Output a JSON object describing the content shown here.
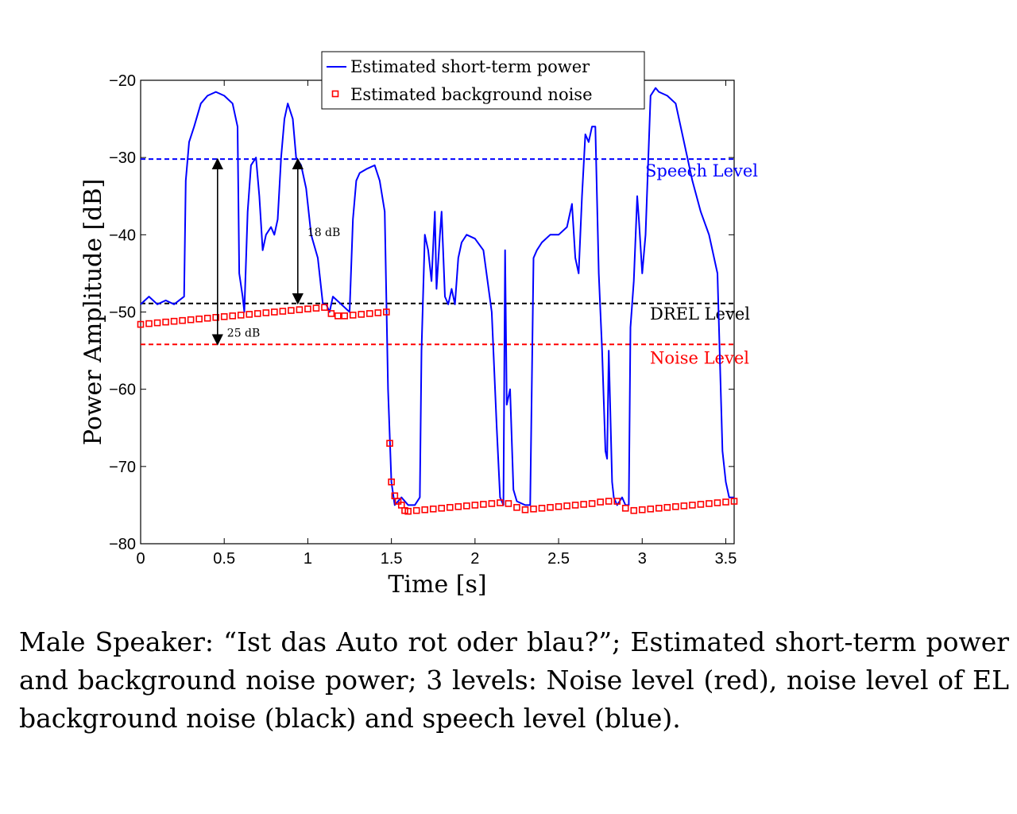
{
  "chart_data": {
    "type": "line",
    "xlabel": "Time [s]",
    "ylabel": "Power Amplitude [dB]",
    "xlim": [
      0,
      3.55
    ],
    "ylim": [
      -80,
      -20
    ],
    "xticks": [
      0,
      0.5,
      1,
      1.5,
      2,
      2.5,
      3,
      3.5
    ],
    "xtick_labels": [
      "0",
      "0.5",
      "1",
      "1.5",
      "2",
      "2.5",
      "3",
      "3.5"
    ],
    "yticks": [
      -20,
      -30,
      -40,
      -50,
      -60,
      -70,
      -80
    ],
    "ytick_labels": [
      "−20",
      "−30",
      "−40",
      "−50",
      "−60",
      "−70",
      "−80"
    ],
    "grid": false,
    "legend_position": "top-center",
    "series": [
      {
        "name": "Estimated short-term power",
        "style": "line",
        "color": "#0000ff",
        "x": [
          0,
          0.05,
          0.1,
          0.15,
          0.2,
          0.26,
          0.27,
          0.29,
          0.32,
          0.36,
          0.4,
          0.45,
          0.5,
          0.55,
          0.58,
          0.59,
          0.61,
          0.62,
          0.64,
          0.66,
          0.69,
          0.71,
          0.73,
          0.75,
          0.78,
          0.8,
          0.82,
          0.84,
          0.86,
          0.88,
          0.91,
          0.93,
          0.96,
          0.99,
          1.02,
          1.06,
          1.09,
          1.11,
          1.13,
          1.15,
          1.2,
          1.25,
          1.27,
          1.29,
          1.31,
          1.35,
          1.4,
          1.43,
          1.46,
          1.48,
          1.5,
          1.52,
          1.56,
          1.6,
          1.64,
          1.67,
          1.68,
          1.7,
          1.72,
          1.74,
          1.76,
          1.77,
          1.79,
          1.8,
          1.82,
          1.84,
          1.86,
          1.88,
          1.9,
          1.92,
          1.95,
          2.0,
          2.05,
          2.1,
          2.13,
          2.15,
          2.17,
          2.18,
          2.19,
          2.21,
          2.23,
          2.25,
          2.3,
          2.33,
          2.35,
          2.37,
          2.4,
          2.45,
          2.5,
          2.55,
          2.58,
          2.6,
          2.62,
          2.64,
          2.66,
          2.68,
          2.7,
          2.72,
          2.74,
          2.76,
          2.78,
          2.79,
          2.8,
          2.82,
          2.83,
          2.85,
          2.88,
          2.9,
          2.92,
          2.93,
          2.95,
          2.97,
          2.98,
          3.0,
          3.02,
          3.05,
          3.08,
          3.1,
          3.15,
          3.2,
          3.25,
          3.3,
          3.35,
          3.4,
          3.45,
          3.48,
          3.5,
          3.52,
          3.55
        ],
        "y": [
          -49,
          -48,
          -49,
          -48.5,
          -49,
          -48,
          -33,
          -28,
          -26,
          -23,
          -22,
          -21.5,
          -22,
          -23,
          -26,
          -45,
          -48,
          -50,
          -37,
          -31,
          -30,
          -35,
          -42,
          -40,
          -39,
          -40,
          -38,
          -30,
          -25,
          -23,
          -25,
          -30,
          -31,
          -34,
          -40,
          -43,
          -49,
          -49,
          -50,
          -48,
          -49,
          -50,
          -38,
          -33,
          -32,
          -31.5,
          -31,
          -33,
          -37,
          -60,
          -72,
          -75,
          -74,
          -75,
          -75,
          -74,
          -55,
          -40,
          -42,
          -46,
          -37,
          -47,
          -40,
          -37,
          -48,
          -49,
          -47,
          -49,
          -43,
          -41,
          -40,
          -40.5,
          -42,
          -50,
          -65,
          -74,
          -75,
          -42,
          -62,
          -60,
          -73,
          -74.5,
          -75,
          -75,
          -43,
          -42,
          -41,
          -40,
          -40,
          -39,
          -36,
          -43,
          -45,
          -35,
          -27,
          -28,
          -26,
          -26,
          -45,
          -55,
          -68,
          -69,
          -55,
          -72,
          -74,
          -75,
          -74,
          -75,
          -75,
          -52,
          -46,
          -35,
          -38,
          -45,
          -40,
          -22,
          -21,
          -21.5,
          -22,
          -23,
          -28,
          -33,
          -37,
          -40,
          -45,
          -68,
          -72,
          -74,
          -74
        ]
      },
      {
        "name": "Estimated background noise",
        "style": "markers",
        "color": "#ff0000",
        "x": [
          0,
          0.05,
          0.1,
          0.15,
          0.2,
          0.25,
          0.3,
          0.35,
          0.4,
          0.45,
          0.5,
          0.55,
          0.6,
          0.65,
          0.7,
          0.75,
          0.8,
          0.85,
          0.9,
          0.95,
          1.0,
          1.05,
          1.1,
          1.14,
          1.18,
          1.22,
          1.27,
          1.32,
          1.37,
          1.42,
          1.47,
          1.49,
          1.5,
          1.52,
          1.54,
          1.56,
          1.58,
          1.6,
          1.65,
          1.7,
          1.75,
          1.8,
          1.85,
          1.9,
          1.95,
          2.0,
          2.05,
          2.1,
          2.15,
          2.2,
          2.25,
          2.3,
          2.35,
          2.4,
          2.45,
          2.5,
          2.55,
          2.6,
          2.65,
          2.7,
          2.75,
          2.8,
          2.85,
          2.9,
          2.95,
          3.0,
          3.05,
          3.1,
          3.15,
          3.2,
          3.25,
          3.3,
          3.35,
          3.4,
          3.45,
          3.5,
          3.55
        ],
        "y": [
          -51.6,
          -51.5,
          -51.4,
          -51.3,
          -51.2,
          -51.1,
          -51.0,
          -50.9,
          -50.8,
          -50.7,
          -50.6,
          -50.5,
          -50.4,
          -50.3,
          -50.2,
          -50.1,
          -50.0,
          -49.9,
          -49.8,
          -49.7,
          -49.6,
          -49.5,
          -49.4,
          -50.2,
          -50.5,
          -50.5,
          -50.4,
          -50.3,
          -50.2,
          -50.1,
          -50.0,
          -67.0,
          -72.0,
          -73.8,
          -74.5,
          -75.0,
          -75.7,
          -75.8,
          -75.7,
          -75.6,
          -75.5,
          -75.4,
          -75.3,
          -75.2,
          -75.1,
          -75.0,
          -74.9,
          -74.8,
          -74.7,
          -74.8,
          -75.3,
          -75.6,
          -75.5,
          -75.4,
          -75.3,
          -75.2,
          -75.1,
          -75.0,
          -74.9,
          -74.8,
          -74.6,
          -74.5,
          -74.5,
          -75.4,
          -75.7,
          -75.6,
          -75.5,
          -75.4,
          -75.3,
          -75.2,
          -75.1,
          -75.0,
          -74.9,
          -74.8,
          -74.7,
          -74.6,
          -74.5
        ]
      }
    ],
    "reference_lines": [
      {
        "label": "Speech Level",
        "y": -30.2,
        "color": "#0000ff"
      },
      {
        "label": "DREL Level",
        "y": -48.9,
        "color": "#000000"
      },
      {
        "label": "Noise Level",
        "y": -54.2,
        "color": "#ff0000"
      }
    ],
    "annotations": [
      {
        "label": "25 dB",
        "x": 0.46,
        "y_from": -30.2,
        "y_to": -54.2
      },
      {
        "label": "18 dB",
        "x": 0.94,
        "y_from": -30.2,
        "y_to": -48.9
      }
    ]
  },
  "caption": "Male Speaker: “Ist das Auto rot oder blau?”; Estimated short-term power and background noise power; 3 levels: Noise level (red), noise level of EL background noise (black) and speech level (blue)."
}
